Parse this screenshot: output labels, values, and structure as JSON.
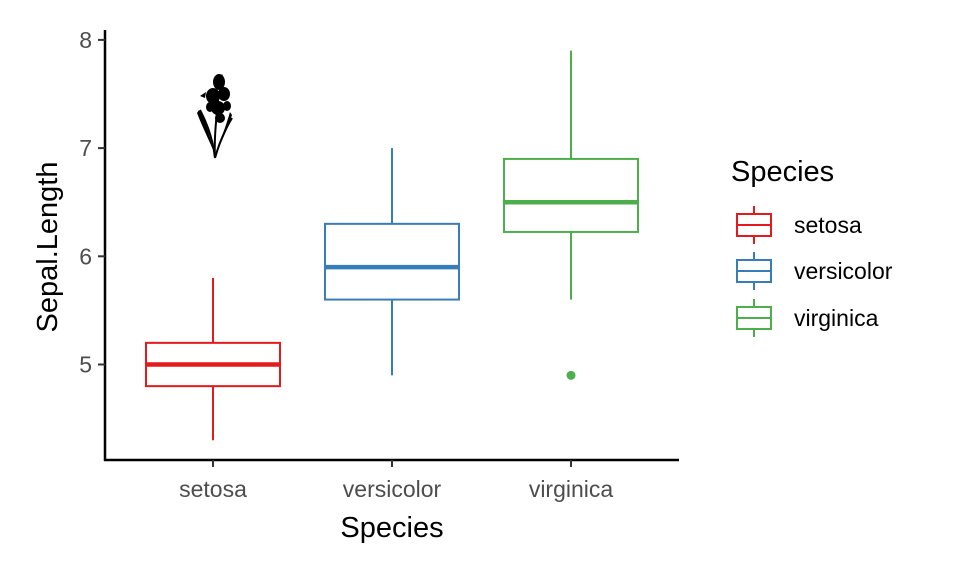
{
  "chart_data": {
    "type": "box",
    "xlabel": "Species",
    "ylabel": "Sepal.Length",
    "ylim": [
      4.3,
      7.9
    ],
    "yticks": [
      5,
      6,
      7,
      8
    ],
    "categories": [
      "setosa",
      "versicolor",
      "virginica"
    ],
    "grid": false,
    "legend": {
      "title": "Species",
      "position": "right",
      "entries": [
        "setosa",
        "versicolor",
        "virginica"
      ]
    },
    "colors": [
      "#e41a1c",
      "#377eb8",
      "#4daf4a"
    ],
    "boxes": [
      {
        "name": "setosa",
        "lower_whisker": 4.3,
        "q1": 4.8,
        "median": 5.0,
        "q3": 5.2,
        "upper_whisker": 5.8,
        "outliers": []
      },
      {
        "name": "versicolor",
        "lower_whisker": 4.9,
        "q1": 5.6,
        "median": 5.9,
        "q3": 6.3,
        "upper_whisker": 7.0,
        "outliers": []
      },
      {
        "name": "virginica",
        "lower_whisker": 5.6,
        "q1": 6.225,
        "median": 6.5,
        "q3": 6.9,
        "upper_whisker": 7.9,
        "outliers": [
          4.9
        ]
      }
    ],
    "annotation_icon": "iris-flower-icon"
  }
}
